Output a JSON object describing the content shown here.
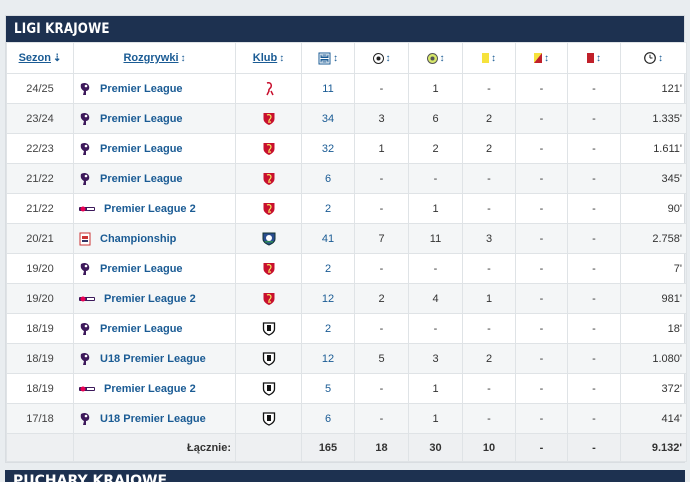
{
  "section_title": "LIGI KRAJOWE",
  "next_section_title": "PUCHARY KRAJOWE",
  "headers": {
    "season": "Sezon",
    "competition": "Rozgrywki",
    "club": "Klub"
  },
  "colors": {
    "header_bg": "#1d3150",
    "link": "#1a5b94",
    "yellow_card": "#f6e23c",
    "red_card": "#c0202a"
  },
  "rows": [
    {
      "season": "24/25",
      "comp": "Premier League",
      "comp_icon": "premier-league-logo",
      "club_icon": "liverpool-logo",
      "apps": "11",
      "goals": "-",
      "assists": "1",
      "yellow": "-",
      "second_yellow": "-",
      "red": "-",
      "minutes": "121'"
    },
    {
      "season": "23/24",
      "comp": "Premier League",
      "comp_icon": "premier-league-logo",
      "club_icon": "liverpool-logo",
      "apps": "34",
      "goals": "3",
      "assists": "6",
      "yellow": "2",
      "second_yellow": "-",
      "red": "-",
      "minutes": "1.335'"
    },
    {
      "season": "22/23",
      "comp": "Premier League",
      "comp_icon": "premier-league-logo",
      "club_icon": "liverpool-logo",
      "apps": "32",
      "goals": "1",
      "assists": "2",
      "yellow": "2",
      "second_yellow": "-",
      "red": "-",
      "minutes": "1.611'"
    },
    {
      "season": "21/22",
      "comp": "Premier League",
      "comp_icon": "premier-league-logo",
      "club_icon": "liverpool-logo",
      "apps": "6",
      "goals": "-",
      "assists": "-",
      "yellow": "-",
      "second_yellow": "-",
      "red": "-",
      "minutes": "345'"
    },
    {
      "season": "21/22",
      "comp": "Premier League 2",
      "comp_icon": "premier-league-2-logo",
      "club_icon": "liverpool-logo",
      "apps": "2",
      "goals": "-",
      "assists": "1",
      "yellow": "-",
      "second_yellow": "-",
      "red": "-",
      "minutes": "90'"
    },
    {
      "season": "20/21",
      "comp": "Championship",
      "comp_icon": "championship-logo",
      "club_icon": "blackburn-logo",
      "apps": "41",
      "goals": "7",
      "assists": "11",
      "yellow": "3",
      "second_yellow": "-",
      "red": "-",
      "minutes": "2.758'"
    },
    {
      "season": "19/20",
      "comp": "Premier League",
      "comp_icon": "premier-league-logo",
      "club_icon": "liverpool-logo",
      "apps": "2",
      "goals": "-",
      "assists": "-",
      "yellow": "-",
      "second_yellow": "-",
      "red": "-",
      "minutes": "7'"
    },
    {
      "season": "19/20",
      "comp": "Premier League 2",
      "comp_icon": "premier-league-2-logo",
      "club_icon": "liverpool-logo",
      "apps": "12",
      "goals": "2",
      "assists": "4",
      "yellow": "1",
      "second_yellow": "-",
      "red": "-",
      "minutes": "981'"
    },
    {
      "season": "18/19",
      "comp": "Premier League",
      "comp_icon": "premier-league-logo",
      "club_icon": "fulham-logo",
      "apps": "2",
      "goals": "-",
      "assists": "-",
      "yellow": "-",
      "second_yellow": "-",
      "red": "-",
      "minutes": "18'"
    },
    {
      "season": "18/19",
      "comp": "U18 Premier League",
      "comp_icon": "premier-league-logo",
      "club_icon": "fulham-logo",
      "apps": "12",
      "goals": "5",
      "assists": "3",
      "yellow": "2",
      "second_yellow": "-",
      "red": "-",
      "minutes": "1.080'"
    },
    {
      "season": "18/19",
      "comp": "Premier League 2",
      "comp_icon": "premier-league-2-logo",
      "club_icon": "fulham-logo",
      "apps": "5",
      "goals": "-",
      "assists": "1",
      "yellow": "-",
      "second_yellow": "-",
      "red": "-",
      "minutes": "372'"
    },
    {
      "season": "17/18",
      "comp": "U18 Premier League",
      "comp_icon": "premier-league-logo",
      "club_icon": "fulham-logo",
      "apps": "6",
      "goals": "-",
      "assists": "1",
      "yellow": "-",
      "second_yellow": "-",
      "red": "-",
      "minutes": "414'"
    }
  ],
  "totals": {
    "label": "Łącznie:",
    "apps": "165",
    "goals": "18",
    "assists": "30",
    "yellow": "10",
    "second_yellow": "-",
    "red": "-",
    "minutes": "9.132'"
  }
}
